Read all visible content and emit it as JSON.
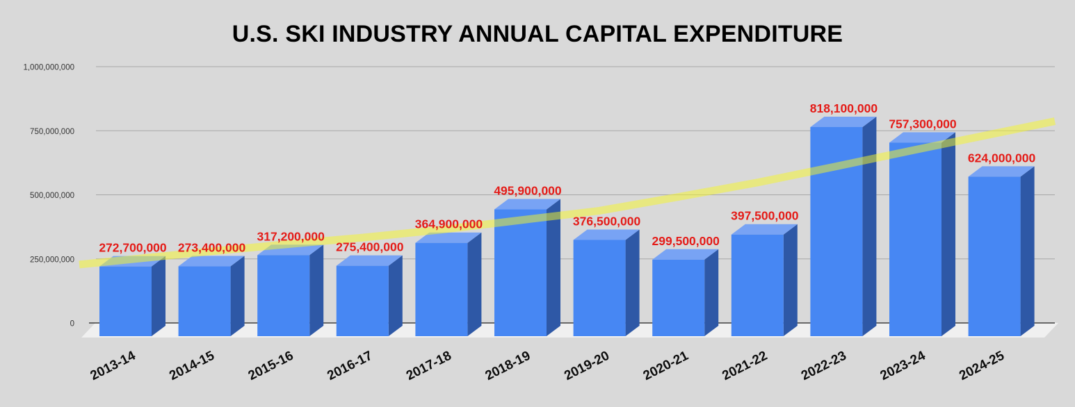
{
  "chart_data": {
    "type": "bar",
    "style": "3d-column",
    "title": "U.S. SKI INDUSTRY ANNUAL CAPITAL EXPENDITURE",
    "categories": [
      "2013-14",
      "2014-15",
      "2015-16",
      "2016-17",
      "2017-18",
      "2018-19",
      "2019-20",
      "2020-21",
      "2021-22",
      "2022-23",
      "2023-24",
      "2024-25"
    ],
    "values": [
      272700000,
      273400000,
      317200000,
      275400000,
      364900000,
      495900000,
      376500000,
      299500000,
      397500000,
      818100000,
      757300000,
      624000000
    ],
    "value_labels": [
      "272,700,000",
      "273,400,000",
      "317,200,000",
      "275,400,000",
      "364,900,000",
      "495,900,000",
      "376,500,000",
      "299,500,000",
      "397,500,000",
      "818,100,000",
      "757,300,000",
      "624,000,000"
    ],
    "xlabel": "",
    "ylabel": "",
    "ylim": [
      0,
      1000000000
    ],
    "grid": true,
    "legend": "none",
    "y_ticks": [
      {
        "value": 0,
        "label": "0"
      },
      {
        "value": 250000000,
        "label": "250,000,000"
      },
      {
        "value": 500000000,
        "label": "500,000,000"
      },
      {
        "value": 750000000,
        "label": "750,000,000"
      },
      {
        "value": 1000000000,
        "label": "1,000,000,000"
      }
    ],
    "trendline": {
      "shape": "exponential",
      "values": [
        246000000,
        277000000,
        306000000,
        333000000,
        364000000,
        401000000,
        438000000,
        492000000,
        548000000,
        611000000,
        676000000,
        739000000
      ],
      "color": "#f8f828",
      "opacity": 0.5
    },
    "colors": {
      "bar_front": "#4787f3",
      "bar_top": "#78a3f4",
      "bar_side": "#2e58a6",
      "value_label": "#e41c18",
      "background": "#d9d9d9",
      "floor": "#f0f0f0",
      "gridline": "#a8a8a8",
      "zero_line": "#1f1f1f",
      "axis_text": "#333333",
      "category_text": "#0d0d0d",
      "title_text": "#000000"
    }
  }
}
